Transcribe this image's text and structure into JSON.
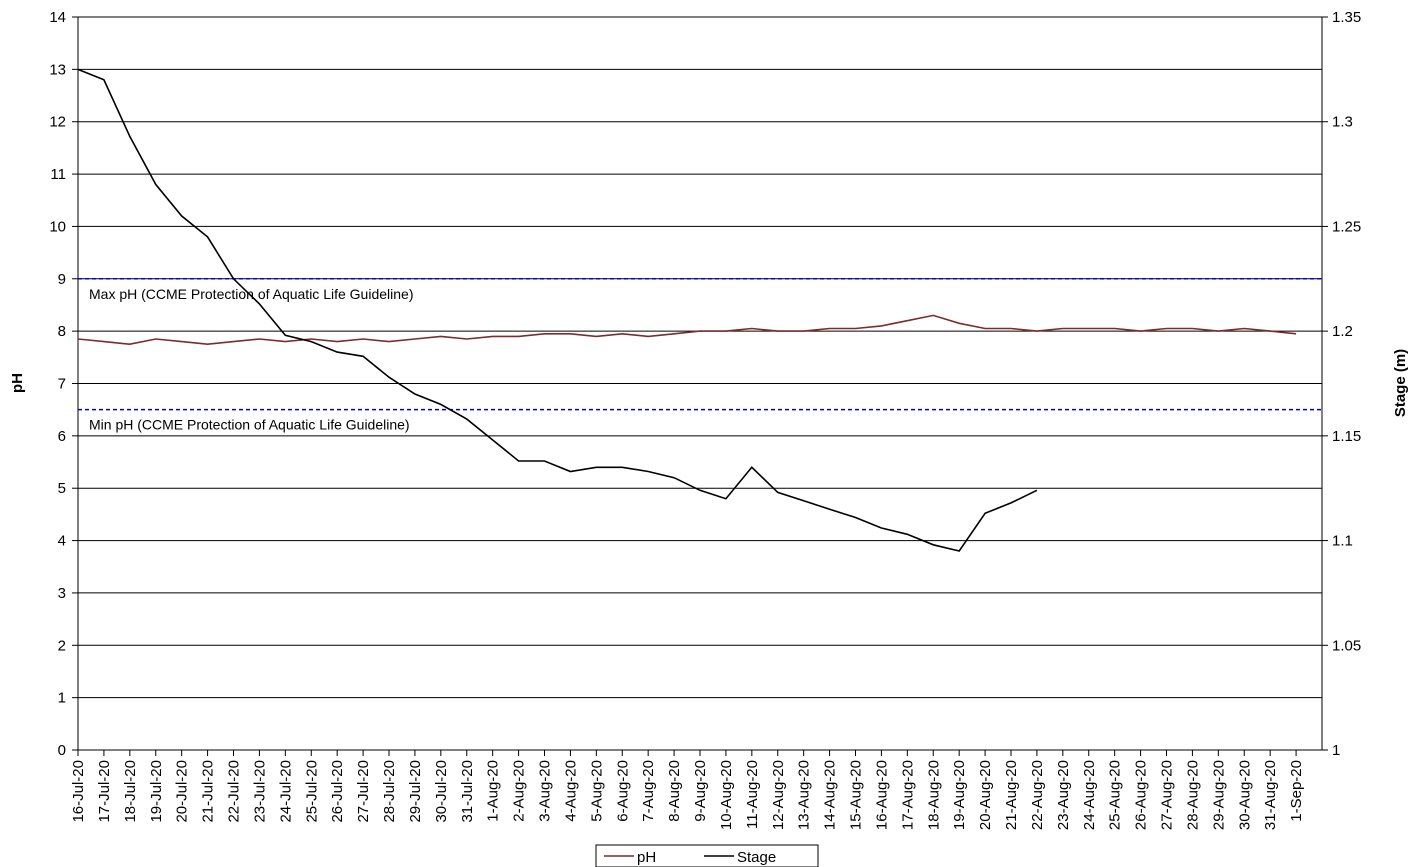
{
  "chart_data": {
    "type": "line",
    "y_label": "pH",
    "y2_label": "Stage (m)",
    "categories": [
      "16-Jul-20",
      "17-Jul-20",
      "18-Jul-20",
      "19-Jul-20",
      "20-Jul-20",
      "21-Jul-20",
      "22-Jul-20",
      "23-Jul-20",
      "24-Jul-20",
      "25-Jul-20",
      "26-Jul-20",
      "27-Jul-20",
      "28-Jul-20",
      "29-Jul-20",
      "30-Jul-20",
      "31-Jul-20",
      "1-Aug-20",
      "2-Aug-20",
      "3-Aug-20",
      "4-Aug-20",
      "5-Aug-20",
      "6-Aug-20",
      "7-Aug-20",
      "8-Aug-20",
      "9-Aug-20",
      "10-Aug-20",
      "11-Aug-20",
      "12-Aug-20",
      "13-Aug-20",
      "14-Aug-20",
      "15-Aug-20",
      "16-Aug-20",
      "17-Aug-20",
      "18-Aug-20",
      "19-Aug-20",
      "20-Aug-20",
      "21-Aug-20",
      "22-Aug-20",
      "23-Aug-20",
      "24-Aug-20",
      "25-Aug-20",
      "26-Aug-20",
      "27-Aug-20",
      "28-Aug-20",
      "29-Aug-20",
      "30-Aug-20",
      "31-Aug-20",
      "1-Sep-20"
    ],
    "series": [
      {
        "name": "pH",
        "color": "#7b2c2c",
        "values": [
          7.85,
          7.8,
          7.75,
          7.85,
          7.8,
          7.75,
          7.8,
          7.85,
          7.8,
          7.85,
          7.8,
          7.85,
          7.8,
          7.85,
          7.9,
          7.85,
          7.9,
          7.9,
          7.95,
          7.95,
          7.9,
          7.95,
          7.9,
          7.95,
          8.0,
          8.0,
          8.05,
          8.0,
          8.0,
          8.05,
          8.05,
          8.1,
          8.2,
          8.3,
          8.15,
          8.05,
          8.05,
          8.0,
          8.05,
          8.05,
          8.05,
          8.0,
          8.05,
          8.05,
          8.0,
          8.05,
          8.0,
          7.95
        ]
      },
      {
        "name": "Stage",
        "color": "#000000",
        "axis": "y2",
        "values": [
          1.325,
          1.32,
          1.293,
          1.27,
          1.255,
          1.245,
          1.225,
          1.213,
          1.198,
          1.195,
          1.19,
          1.188,
          1.178,
          1.17,
          1.165,
          1.158,
          1.148,
          1.138,
          1.138,
          1.133,
          1.135,
          1.135,
          1.133,
          1.13,
          1.124,
          1.12,
          1.135,
          1.123,
          1.119,
          1.115,
          1.111,
          1.106,
          1.103,
          1.098,
          1.095,
          1.113,
          1.118,
          1.124,
          null,
          null,
          null,
          null,
          null,
          null,
          null,
          null,
          null,
          null
        ]
      }
    ],
    "reference_lines": [
      {
        "value": 9,
        "label": "Max pH (CCME Protection of Aquatic Life Guideline)",
        "color": "#0000cc"
      },
      {
        "value": 6.5,
        "label": "Min pH (CCME Protection of Aquatic Life Guideline)",
        "color": "#0000cc"
      }
    ],
    "ylim": [
      0,
      14
    ],
    "yticks": [
      0,
      1,
      2,
      3,
      4,
      5,
      6,
      7,
      8,
      9,
      10,
      11,
      12,
      13,
      14
    ],
    "y2lim": [
      1,
      1.35
    ],
    "y2ticks": [
      1,
      1.05,
      1.1,
      1.15,
      1.2,
      1.25,
      1.3,
      1.35
    ],
    "grid": true,
    "legend": "bottom"
  }
}
